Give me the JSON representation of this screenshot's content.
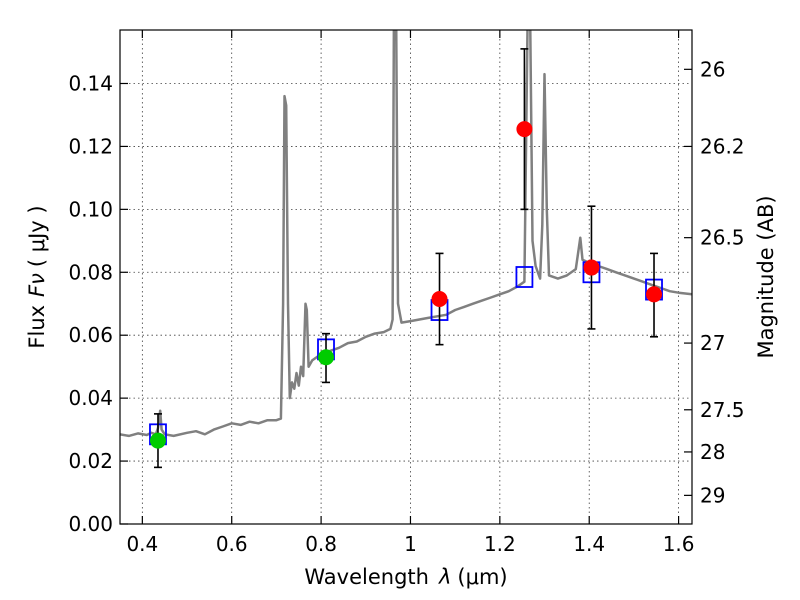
{
  "chart_data": {
    "type": "scatter",
    "xlabel_prefix": "Wavelength",
    "xlabel_symbol": "λ",
    "xlabel_unit": "(μm)",
    "ylabel_prefix": "Flux",
    "ylabel_symbol": "Fν",
    "ylabel_unit": "( μJy )",
    "y2label": "Magnitude (AB)",
    "xlim": [
      0.35,
      1.63
    ],
    "ylim": [
      0.0,
      0.157
    ],
    "grid": true,
    "x_ticks": [
      0.4,
      0.6,
      0.8,
      1.0,
      1.2,
      1.4,
      1.6
    ],
    "x_tick_labels": [
      "0.4",
      "0.6",
      "0.8",
      "1",
      "1.2",
      "1.4",
      "1.6"
    ],
    "y_ticks": [
      0.0,
      0.02,
      0.04,
      0.06,
      0.08,
      0.1,
      0.12,
      0.14
    ],
    "y_tick_labels": [
      "0.00",
      "0.02",
      "0.04",
      "0.06",
      "0.08",
      "0.10",
      "0.12",
      "0.14"
    ],
    "y2_ticks": [
      {
        "label": "26",
        "flux": 0.1445
      },
      {
        "label": "26.2",
        "flux": 0.12
      },
      {
        "label": "26.5",
        "flux": 0.091
      },
      {
        "label": "27",
        "flux": 0.0575
      },
      {
        "label": "27.5",
        "flux": 0.0363
      },
      {
        "label": "28",
        "flux": 0.0229
      },
      {
        "label": "29",
        "flux": 0.0091
      }
    ],
    "series": [
      {
        "kind": "line",
        "color": "#808080",
        "points": [
          [
            0.35,
            0.0285
          ],
          [
            0.37,
            0.028
          ],
          [
            0.39,
            0.0288
          ],
          [
            0.41,
            0.0283
          ],
          [
            0.42,
            0.029
          ],
          [
            0.43,
            0.0285
          ],
          [
            0.435,
            0.0305
          ],
          [
            0.44,
            0.036
          ],
          [
            0.443,
            0.03
          ],
          [
            0.45,
            0.0285
          ],
          [
            0.47,
            0.028
          ],
          [
            0.5,
            0.029
          ],
          [
            0.52,
            0.0295
          ],
          [
            0.54,
            0.0285
          ],
          [
            0.56,
            0.03
          ],
          [
            0.58,
            0.031
          ],
          [
            0.6,
            0.032
          ],
          [
            0.62,
            0.0315
          ],
          [
            0.64,
            0.0325
          ],
          [
            0.66,
            0.032
          ],
          [
            0.68,
            0.033
          ],
          [
            0.7,
            0.033
          ],
          [
            0.71,
            0.0335
          ],
          [
            0.715,
            0.07
          ],
          [
            0.718,
            0.136
          ],
          [
            0.722,
            0.133
          ],
          [
            0.726,
            0.07
          ],
          [
            0.73,
            0.04
          ],
          [
            0.735,
            0.045
          ],
          [
            0.74,
            0.043
          ],
          [
            0.745,
            0.048
          ],
          [
            0.75,
            0.044
          ],
          [
            0.755,
            0.05
          ],
          [
            0.76,
            0.047
          ],
          [
            0.765,
            0.07
          ],
          [
            0.768,
            0.068
          ],
          [
            0.772,
            0.05
          ],
          [
            0.78,
            0.052
          ],
          [
            0.8,
            0.054
          ],
          [
            0.82,
            0.055
          ],
          [
            0.84,
            0.056
          ],
          [
            0.86,
            0.0575
          ],
          [
            0.88,
            0.058
          ],
          [
            0.9,
            0.0595
          ],
          [
            0.92,
            0.0605
          ],
          [
            0.94,
            0.061
          ],
          [
            0.955,
            0.062
          ],
          [
            0.96,
            0.065
          ],
          [
            0.963,
            0.16
          ],
          [
            0.968,
            0.16
          ],
          [
            0.972,
            0.07
          ],
          [
            0.98,
            0.064
          ],
          [
            1.0,
            0.0645
          ],
          [
            1.02,
            0.065
          ],
          [
            1.04,
            0.0655
          ],
          [
            1.06,
            0.066
          ],
          [
            1.08,
            0.0665
          ],
          [
            1.1,
            0.068
          ],
          [
            1.12,
            0.069
          ],
          [
            1.14,
            0.07
          ],
          [
            1.16,
            0.071
          ],
          [
            1.18,
            0.072
          ],
          [
            1.2,
            0.073
          ],
          [
            1.22,
            0.074
          ],
          [
            1.24,
            0.0755
          ],
          [
            1.255,
            0.077
          ],
          [
            1.262,
            0.16
          ],
          [
            1.268,
            0.16
          ],
          [
            1.273,
            0.09
          ],
          [
            1.28,
            0.082
          ],
          [
            1.29,
            0.078
          ],
          [
            1.295,
            0.095
          ],
          [
            1.3,
            0.143
          ],
          [
            1.305,
            0.1
          ],
          [
            1.31,
            0.079
          ],
          [
            1.33,
            0.078
          ],
          [
            1.35,
            0.079
          ],
          [
            1.37,
            0.081
          ],
          [
            1.38,
            0.091
          ],
          [
            1.385,
            0.084
          ],
          [
            1.4,
            0.083
          ],
          [
            1.42,
            0.082
          ],
          [
            1.44,
            0.081
          ],
          [
            1.46,
            0.08
          ],
          [
            1.48,
            0.079
          ],
          [
            1.5,
            0.078
          ],
          [
            1.52,
            0.077
          ],
          [
            1.54,
            0.076
          ],
          [
            1.56,
            0.075
          ],
          [
            1.58,
            0.074
          ],
          [
            1.6,
            0.0735
          ],
          [
            1.63,
            0.073
          ]
        ]
      },
      {
        "kind": "markers",
        "marker": "square",
        "color": "#0000ff",
        "points": [
          [
            0.435,
            0.0285
          ],
          [
            0.811,
            0.0555
          ],
          [
            1.065,
            0.068
          ],
          [
            1.255,
            0.0785
          ],
          [
            1.405,
            0.08
          ],
          [
            1.545,
            0.0745
          ]
        ]
      },
      {
        "kind": "markers",
        "marker": "circle",
        "color": "#00cc00",
        "errorbars": true,
        "points": [
          {
            "x": 0.435,
            "y": 0.0265,
            "ylo": 0.018,
            "yhi": 0.035
          },
          {
            "x": 0.811,
            "y": 0.053,
            "ylo": 0.045,
            "yhi": 0.0605
          }
        ]
      },
      {
        "kind": "markers",
        "marker": "circle",
        "color": "#ff0000",
        "errorbars": true,
        "points": [
          {
            "x": 1.065,
            "y": 0.0715,
            "ylo": 0.057,
            "yhi": 0.086
          },
          {
            "x": 1.255,
            "y": 0.1255,
            "ylo": 0.1,
            "yhi": 0.151
          },
          {
            "x": 1.405,
            "y": 0.0815,
            "ylo": 0.062,
            "yhi": 0.101
          },
          {
            "x": 1.545,
            "y": 0.073,
            "ylo": 0.0595,
            "yhi": 0.086
          }
        ]
      }
    ]
  }
}
